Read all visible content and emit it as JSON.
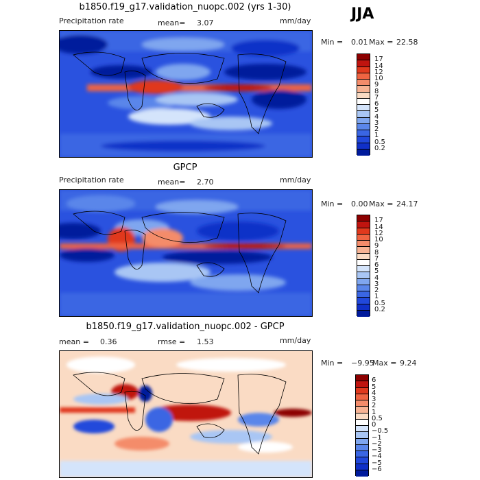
{
  "season": "JJA",
  "colors": {
    "precip_ramp": [
      "#8c0000",
      "#c0140f",
      "#e0391d",
      "#ef6442",
      "#f48c6b",
      "#f7b394",
      "#fadbc4",
      "#ffffff",
      "#d4e4fb",
      "#a9c6f4",
      "#7fa6ef",
      "#5a86ea",
      "#3a66e3",
      "#2148db",
      "#1030c8",
      "#001a9c"
    ],
    "diff_ramp": [
      "#8c0000",
      "#c0140f",
      "#e0391d",
      "#ef6442",
      "#f48c6b",
      "#f7b394",
      "#fadbc4",
      "#ffffff",
      "#d4e4fb",
      "#a9c6f4",
      "#7fa6ef",
      "#5a86ea",
      "#3a66e3",
      "#2148db",
      "#1030c8",
      "#001a9c"
    ]
  },
  "chart_data": [
    {
      "type": "heatmap",
      "title": "b1850.f19_g17.validation_nuopc.002 (yrs 1-30)",
      "left_label": "Precipitation rate",
      "mean_label": "mean=",
      "mean": "3.07",
      "units": "mm/day",
      "min_label": "Min =",
      "min": "0.01",
      "max_label": "Max =",
      "max": "22.58",
      "colorbar_ticks": [
        "17",
        "14",
        "12",
        "10",
        "9",
        "8",
        "7",
        "6",
        "5",
        "4",
        "3",
        "2",
        "1",
        "0.5",
        "0.2"
      ]
    },
    {
      "type": "heatmap",
      "title": "GPCP",
      "left_label": "Precipitation rate",
      "mean_label": "mean=",
      "mean": "2.70",
      "units": "mm/day",
      "min_label": "Min =",
      "min": "0.00",
      "max_label": "Max =",
      "max": "24.17",
      "colorbar_ticks": [
        "17",
        "14",
        "12",
        "10",
        "9",
        "8",
        "7",
        "6",
        "5",
        "4",
        "3",
        "2",
        "1",
        "0.5",
        "0.2"
      ]
    },
    {
      "type": "heatmap",
      "title": "b1850.f19_g17.validation_nuopc.002 - GPCP",
      "mean_label": "mean =",
      "mean": "0.36",
      "rmse_label": "rmse =",
      "rmse": "1.53",
      "units": "mm/day",
      "min_label": "Min =",
      "min": "−9.95",
      "max_label": "Max =",
      "max": "9.24",
      "colorbar_ticks": [
        "6",
        "5",
        "4",
        "3",
        "2",
        "1",
        "0.5",
        "0",
        "−0.5",
        "−1",
        "−2",
        "−3",
        "−4",
        "−5",
        "−6"
      ]
    }
  ]
}
